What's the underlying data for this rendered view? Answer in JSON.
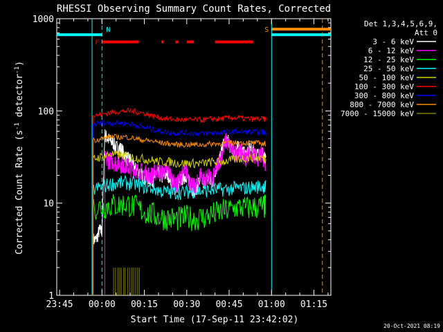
{
  "chart_data": {
    "type": "line",
    "title": "RHESSI Observing Summary Count Rates, Corrected",
    "xlabel": "Start Time (17-Sep-11 23:42:02)",
    "ylabel_main": "Corrected Count Rate (s",
    "ylabel_sup1": "-1",
    "ylabel_mid": " detector",
    "ylabel_sup2": "-1",
    "ylabel_end": ")",
    "y_scale": "log",
    "ylim": [
      1,
      1000
    ],
    "xlim": [
      -16,
      81
    ],
    "x_unit": "minutes from 00:00 (18-Sep-11)",
    "x_ticks": [
      {
        "value": -15,
        "label": "23:45"
      },
      {
        "value": 0,
        "label": "00:00"
      },
      {
        "value": 15,
        "label": "00:15"
      },
      {
        "value": 30,
        "label": "00:30"
      },
      {
        "value": 45,
        "label": "00:45"
      },
      {
        "value": 60,
        "label": "01:00"
      },
      {
        "value": 75,
        "label": "01:15"
      }
    ],
    "y_ticks": [
      {
        "value": 1,
        "label": "1"
      },
      {
        "value": 10,
        "label": "10"
      },
      {
        "value": 100,
        "label": "100"
      },
      {
        "value": 1000,
        "label": "1000"
      }
    ],
    "legend_header": [
      "Det 1,3,4,5,6,9,",
      "Att 0"
    ],
    "legend_placement": "right",
    "timestamp": "20-Oct-2021 08:19",
    "flags": {
      "N": {
        "label": "N",
        "color": "#00ffff",
        "intervals": [
          [
            -16,
            0
          ],
          [
            60,
            81
          ]
        ],
        "level": 670
      },
      "S": {
        "label": "S",
        "color": "#ff8c00",
        "intervals": [
          [
            60,
            81
          ]
        ],
        "level": 770
      },
      "F": {
        "label": "F",
        "color": "#ff0000",
        "intervals": [
          [
            0,
            13
          ],
          [
            21,
            21.8
          ],
          [
            26,
            27
          ],
          [
            30,
            32.5
          ],
          [
            40,
            53.5
          ]
        ],
        "level": 560
      }
    },
    "boundaries": [
      {
        "x": -3.5,
        "color": "#00ffff",
        "style": "solid"
      },
      {
        "x": 0,
        "color": "#00ffff",
        "style": "dashed"
      },
      {
        "x": 60,
        "color": "#00ffff",
        "style": "solid"
      },
      {
        "x": 78,
        "color": "#ff8c00",
        "style": "dashed"
      }
    ],
    "series": [
      {
        "name": "3 - 6 keV",
        "color": "#ffffff",
        "x": [
          -3.2,
          -2,
          -1,
          0,
          1,
          2,
          3,
          4,
          5,
          6,
          7,
          8,
          9,
          10,
          11,
          12,
          13,
          14,
          15,
          16,
          17,
          18,
          19,
          20,
          21,
          22,
          23,
          24,
          25,
          26,
          27,
          28,
          29,
          30,
          31,
          32,
          33,
          34,
          35,
          36,
          37,
          38,
          39,
          40,
          41,
          42,
          43,
          44,
          45,
          46,
          47,
          48,
          49,
          50,
          51,
          52,
          53,
          54,
          55,
          56,
          57,
          58
        ],
        "y": [
          4,
          4,
          5,
          5,
          55,
          50,
          47,
          45,
          40,
          40,
          38,
          33,
          30,
          30,
          25,
          23,
          22,
          20,
          19,
          19,
          18,
          18,
          20,
          21,
          19,
          20,
          21,
          19,
          16,
          14,
          16,
          18,
          19,
          20,
          16,
          14,
          14,
          16,
          19,
          16,
          18,
          18,
          16,
          22,
          27,
          33,
          43,
          50,
          44,
          38,
          36,
          40,
          37,
          35,
          33,
          40,
          37,
          35,
          33,
          36,
          35,
          28
        ]
      },
      {
        "name": "6 - 12 keV",
        "color": "#ff00ff",
        "x": [
          -3.2,
          -2,
          -1,
          0,
          1,
          2,
          3,
          4,
          5,
          6,
          7,
          8,
          9,
          10,
          11,
          12,
          13,
          14,
          15,
          16,
          17,
          18,
          19,
          20,
          21,
          22,
          23,
          24,
          25,
          26,
          27,
          28,
          29,
          30,
          31,
          32,
          33,
          34,
          35,
          36,
          37,
          38,
          39,
          40,
          41,
          42,
          43,
          44,
          45,
          46,
          47,
          48,
          49,
          50,
          51,
          52,
          53,
          54,
          55,
          56,
          57,
          58
        ],
        "y": [
          null,
          null,
          null,
          null,
          30,
          29,
          29,
          28,
          27,
          27,
          26,
          26,
          25,
          24,
          23,
          23,
          22,
          22,
          21,
          21,
          20,
          20,
          22,
          23,
          21,
          22,
          23,
          21,
          17,
          15,
          17,
          20,
          21,
          22,
          17,
          15,
          15,
          17,
          21,
          18,
          19,
          19,
          17,
          22,
          26,
          31,
          40,
          48,
          42,
          38,
          34,
          38,
          35,
          33,
          31,
          36,
          34,
          32,
          30,
          33,
          32,
          26
        ]
      },
      {
        "name": "12 - 25 keV",
        "color": "#00ff00",
        "x": [
          -3.2,
          0,
          3,
          6,
          9,
          12,
          15,
          18,
          21,
          24,
          27,
          30,
          33,
          36,
          39,
          42,
          45,
          48,
          51,
          54,
          57,
          58
        ],
        "y": [
          9,
          9,
          9.5,
          9.5,
          9.8,
          9,
          8,
          7.5,
          7,
          6.8,
          6.7,
          7,
          6.8,
          7,
          7.5,
          8,
          8.5,
          9,
          8.8,
          9,
          9.2,
          9
        ]
      },
      {
        "name": "25 - 50 keV",
        "color": "#00ffff",
        "x": [
          -3.2,
          0,
          3,
          6,
          9,
          12,
          15,
          18,
          21,
          24,
          27,
          30,
          33,
          36,
          39,
          42,
          45,
          48,
          51,
          54,
          57,
          58
        ],
        "y": [
          14,
          15,
          16,
          16.5,
          16.5,
          16,
          15,
          14.5,
          13.5,
          13,
          13,
          13.2,
          13.5,
          13.5,
          14,
          14,
          14.2,
          14.5,
          14.5,
          15,
          15.2,
          15
        ]
      },
      {
        "name": "50 - 100 keV",
        "color": "#d4d400",
        "x": [
          -3.2,
          0,
          3,
          6,
          9,
          12,
          15,
          18,
          21,
          24,
          27,
          30,
          33,
          36,
          39,
          42,
          45,
          48,
          51,
          54,
          57,
          58
        ],
        "y": [
          30,
          32,
          34,
          33,
          32,
          31,
          30,
          29,
          28,
          28,
          27,
          27,
          27,
          27,
          28,
          28,
          29,
          30,
          31,
          31,
          31,
          30
        ]
      },
      {
        "name": "100 - 300 keV",
        "color": "#ff0000",
        "x": [
          -3.2,
          0,
          3,
          6,
          9,
          12,
          15,
          18,
          21,
          24,
          27,
          30,
          33,
          36,
          39,
          42,
          45,
          48,
          51,
          54,
          57,
          58
        ],
        "y": [
          88,
          92,
          96,
          98,
          100,
          98,
          94,
          88,
          84,
          82,
          80,
          80,
          80,
          80,
          82,
          82,
          84,
          84,
          82,
          82,
          82,
          81
        ]
      },
      {
        "name": "300 - 800 keV",
        "color": "#0000ff",
        "x": [
          -3.2,
          0,
          3,
          6,
          9,
          12,
          15,
          18,
          21,
          24,
          27,
          30,
          33,
          36,
          39,
          42,
          45,
          48,
          51,
          54,
          57,
          58
        ],
        "y": [
          72,
          74,
          74,
          74,
          73,
          70,
          66,
          63,
          60,
          58,
          58,
          58,
          57,
          57,
          58,
          58,
          59,
          60,
          59,
          59,
          59,
          58
        ]
      },
      {
        "name": "800 - 7000 keV",
        "color": "#ff8c00",
        "x": [
          -3.2,
          0,
          3,
          6,
          9,
          12,
          15,
          18,
          21,
          24,
          27,
          30,
          33,
          36,
          39,
          42,
          45,
          48,
          51,
          54,
          57,
          58
        ],
        "y": [
          48,
          50,
          52,
          52,
          52,
          50,
          48,
          47,
          45,
          44,
          43,
          43,
          43,
          43,
          44,
          44,
          45,
          45,
          45,
          45,
          44,
          44
        ]
      },
      {
        "name": "7000 - 15000 keV",
        "color": "#808000",
        "x": [
          -3.2,
          0,
          3,
          6,
          9,
          12,
          15,
          18,
          21,
          24,
          27,
          30,
          33,
          36,
          39,
          42,
          45,
          48,
          51,
          54,
          57,
          58
        ],
        "y": [
          null,
          null,
          null,
          null,
          null,
          null,
          null,
          null,
          null,
          null,
          null,
          null,
          null,
          null,
          null,
          null,
          null,
          null,
          null,
          null,
          null,
          null
        ]
      }
    ]
  }
}
